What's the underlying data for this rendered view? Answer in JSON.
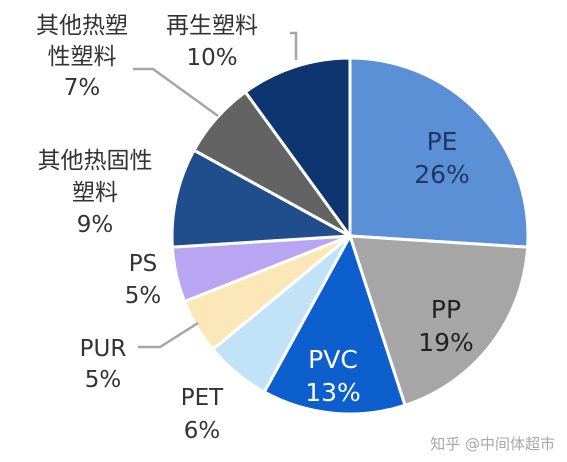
{
  "chart_data": {
    "type": "pie",
    "title": "",
    "slices": [
      {
        "label": "PE",
        "value": 26,
        "pct": "26%",
        "color": "#5b8fd6",
        "label_color": "#1f3864",
        "inside": true
      },
      {
        "label": "PP",
        "value": 19,
        "pct": "19%",
        "color": "#a6a6a6",
        "label_color": "#222222",
        "inside": true
      },
      {
        "label": "PVC",
        "value": 13,
        "pct": "13%",
        "color": "#0d5fce",
        "label_color": "#ffffff",
        "inside": true
      },
      {
        "label": "PET",
        "value": 6,
        "pct": "6%",
        "color": "#c2e3f7",
        "label_color": "#333333",
        "inside": false
      },
      {
        "label": "PUR",
        "value": 5,
        "pct": "5%",
        "color": "#fbe7b8",
        "label_color": "#333333",
        "inside": false
      },
      {
        "label": "PS",
        "value": 5,
        "pct": "5%",
        "color": "#b9a6f2",
        "label_color": "#333333",
        "inside": false
      },
      {
        "label": "其他热固性塑料",
        "label_lines": [
          "其他热固性",
          "塑料"
        ],
        "value": 9,
        "pct": "9%",
        "color": "#204e8c",
        "label_color": "#333333",
        "inside": false
      },
      {
        "label": "其他热塑性塑料",
        "label_lines": [
          "其他热塑",
          "性塑料"
        ],
        "value": 7,
        "pct": "7%",
        "color": "#636363",
        "label_color": "#333333",
        "inside": false
      },
      {
        "label": "再生塑料",
        "value": 10,
        "pct": "10%",
        "color": "#0e3570",
        "label_color": "#333333",
        "inside": false
      }
    ]
  },
  "watermark": "知乎 @中间体超市"
}
